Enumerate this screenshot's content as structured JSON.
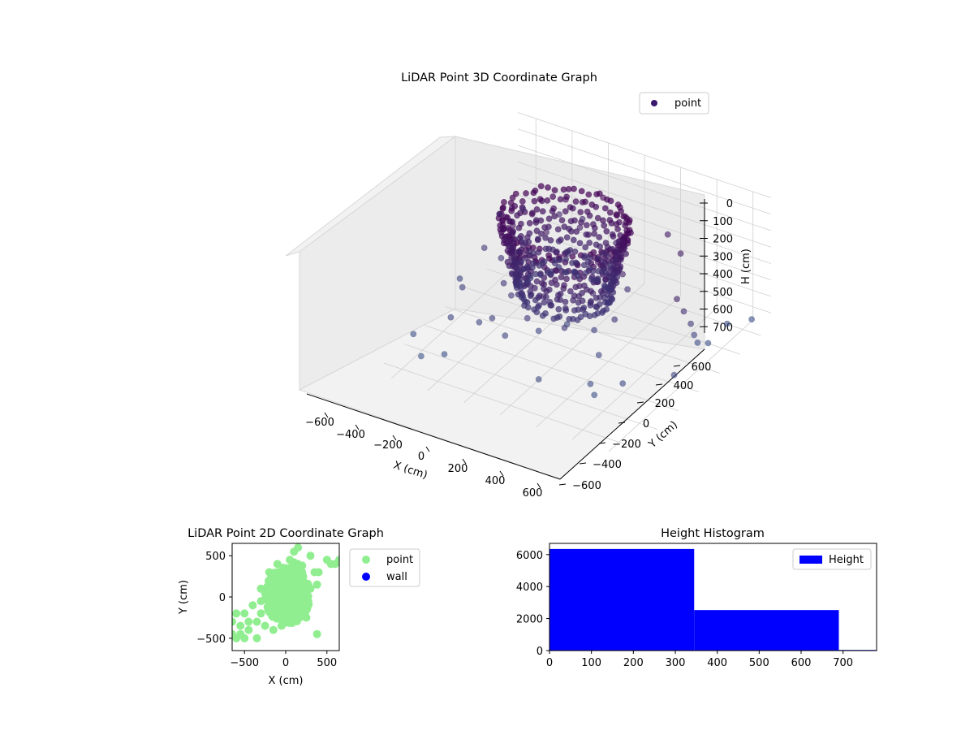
{
  "chart_data": [
    {
      "type": "scatter",
      "projection": "3d",
      "title": "LiDAR Point 3D Coordinate Graph",
      "xlabel": "X (cm)",
      "ylabel": "Y (cm)",
      "zlabel": "H (cm)",
      "xlim": [
        -700,
        700
      ],
      "ylim": [
        -700,
        700
      ],
      "zlim": [
        780,
        0
      ],
      "z_inverted": true,
      "x_ticks": [
        -600,
        -400,
        -200,
        0,
        200,
        400,
        600
      ],
      "y_ticks": [
        -600,
        -400,
        -200,
        0,
        200,
        400,
        600
      ],
      "z_ticks": [
        0,
        100,
        200,
        300,
        400,
        500,
        600,
        700
      ],
      "legend": {
        "entries": [
          "point"
        ],
        "placement": "upper-right"
      },
      "colormap": "viridis",
      "point_color": "#3b1a6e",
      "grid": true,
      "series": [
        {
          "name": "point",
          "sample_points": [
            [
              -250,
              50,
              80
            ],
            [
              -150,
              200,
              40
            ],
            [
              0,
              300,
              30
            ],
            [
              150,
              250,
              60
            ],
            [
              250,
              100,
              80
            ],
            [
              200,
              -100,
              120
            ],
            [
              50,
              -250,
              140
            ],
            [
              -150,
              -200,
              150
            ],
            [
              -300,
              -50,
              110
            ],
            [
              -200,
              100,
              200
            ],
            [
              -100,
              250,
              220
            ],
            [
              100,
              250,
              240
            ],
            [
              250,
              50,
              260
            ],
            [
              200,
              -150,
              280
            ],
            [
              0,
              -280,
              300
            ],
            [
              -200,
              -150,
              320
            ],
            [
              -280,
              80,
              360
            ],
            [
              -150,
              220,
              380
            ],
            [
              50,
              280,
              400
            ],
            [
              220,
              150,
              420
            ],
            [
              280,
              -80,
              450
            ],
            [
              100,
              -250,
              470
            ],
            [
              -100,
              -260,
              480
            ],
            [
              -280,
              -100,
              500
            ],
            [
              -300,
              -250,
              560
            ],
            [
              -200,
              -300,
              600
            ],
            [
              -100,
              -150,
              620
            ],
            [
              0,
              -50,
              600
            ],
            [
              150,
              -50,
              580
            ],
            [
              250,
              -180,
              620
            ],
            [
              300,
              -350,
              680
            ],
            [
              350,
              -400,
              700
            ],
            [
              450,
              -300,
              650
            ],
            [
              550,
              50,
              300
            ],
            [
              560,
              100,
              400
            ],
            [
              570,
              150,
              500
            ],
            [
              560,
              200,
              600
            ],
            [
              550,
              250,
              680
            ],
            [
              580,
              300,
              700
            ],
            [
              -600,
              200,
              500
            ],
            [
              -550,
              -100,
              550
            ],
            [
              -500,
              -300,
              600
            ],
            [
              -450,
              100,
              450
            ],
            [
              -400,
              -200,
              650
            ],
            [
              -650,
              -400,
              700
            ],
            [
              -350,
              -50,
              480
            ],
            [
              -420,
              250,
              420
            ],
            [
              -600,
              350,
              380
            ],
            [
              -500,
              400,
              340
            ],
            [
              -450,
              -450,
              720
            ],
            [
              -550,
              -500,
              740
            ],
            [
              -650,
              50,
              620
            ],
            [
              100,
              -500,
              640
            ],
            [
              300,
              400,
              200
            ],
            [
              400,
              350,
              250
            ],
            [
              -300,
              400,
              300
            ],
            [
              -200,
              450,
              320
            ],
            [
              620,
              -100,
              650
            ],
            [
              650,
              600,
              700
            ],
            [
              600,
              450,
              660
            ]
          ]
        }
      ]
    },
    {
      "type": "scatter",
      "title": "LiDAR Point 2D Coordinate Graph",
      "xlabel": "X (cm)",
      "ylabel": "Y (cm)",
      "xlim": [
        -650,
        650
      ],
      "ylim": [
        -650,
        650
      ],
      "x_ticks": [
        -500,
        0,
        500
      ],
      "y_ticks": [
        -500,
        0,
        500
      ],
      "legend": {
        "entries": [
          "point",
          "wall"
        ],
        "placement": "outside-right"
      },
      "grid": false,
      "series": [
        {
          "name": "point",
          "color": "#90ee90",
          "sample_points": [
            [
              -200,
              -100
            ],
            [
              -100,
              0
            ],
            [
              0,
              100
            ],
            [
              100,
              200
            ],
            [
              200,
              300
            ],
            [
              100,
              -200
            ],
            [
              -300,
              -200
            ],
            [
              0,
              -300
            ],
            [
              200,
              -150
            ],
            [
              -100,
              300
            ],
            [
              150,
              400
            ],
            [
              50,
              450
            ],
            [
              -150,
              200
            ],
            [
              -250,
              50
            ],
            [
              300,
              100
            ],
            [
              250,
              -250
            ],
            [
              -350,
              -300
            ],
            [
              -450,
              -400
            ],
            [
              -550,
              -450
            ],
            [
              -600,
              -500
            ],
            [
              -650,
              -300
            ],
            [
              -500,
              -200
            ],
            [
              -400,
              -100
            ],
            [
              -300,
              100
            ],
            [
              -200,
              300
            ],
            [
              -100,
              400
            ],
            [
              0,
              350
            ],
            [
              100,
              420
            ],
            [
              200,
              380
            ],
            [
              350,
              300
            ],
            [
              300,
              500
            ],
            [
              150,
              600
            ],
            [
              100,
              550
            ],
            [
              500,
              450
            ],
            [
              600,
              400
            ],
            [
              650,
              450
            ],
            [
              550,
              400
            ],
            [
              -550,
              -350
            ],
            [
              -650,
              -450
            ],
            [
              -600,
              -200
            ],
            [
              -50,
              -350
            ],
            [
              50,
              -200
            ],
            [
              150,
              -100
            ],
            [
              250,
              0
            ],
            [
              380,
              150
            ],
            [
              400,
              300
            ],
            [
              380,
              -450
            ],
            [
              -50,
              200
            ],
            [
              -250,
              -350
            ],
            [
              -350,
              -500
            ],
            [
              -150,
              -400
            ],
            [
              0,
              0
            ],
            [
              100,
              50
            ],
            [
              -200,
              0
            ],
            [
              200,
              200
            ],
            [
              -100,
              -150
            ],
            [
              50,
              300
            ],
            [
              -300,
              -50
            ],
            [
              -450,
              -300
            ],
            [
              -500,
              -500
            ]
          ]
        },
        {
          "name": "wall",
          "color": "#0000ff",
          "sample_points": []
        }
      ]
    },
    {
      "type": "bar",
      "title": "Height Histogram",
      "xlabel": "",
      "ylabel": "",
      "xlim": [
        0,
        780
      ],
      "ylim": [
        0,
        6700
      ],
      "x_ticks": [
        0,
        100,
        200,
        300,
        400,
        500,
        600,
        700
      ],
      "y_ticks": [
        0,
        2000,
        4000,
        6000
      ],
      "legend": {
        "entries": [
          "Height"
        ],
        "placement": "upper-right"
      },
      "grid": false,
      "bins": [
        {
          "from": 0,
          "to": 345,
          "count": 6350
        },
        {
          "from": 345,
          "to": 690,
          "count": 2530
        },
        {
          "from": 690,
          "to": 780,
          "count": 40
        }
      ],
      "series": [
        {
          "name": "Height",
          "color": "#0000ff",
          "values": [
            6350,
            2530,
            40
          ]
        }
      ]
    }
  ]
}
